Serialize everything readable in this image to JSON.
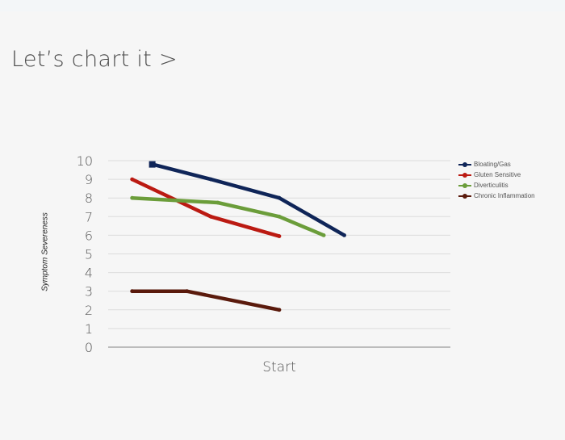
{
  "page": {
    "title": "Let’s chart it >"
  },
  "chart_data": {
    "type": "line",
    "ylabel": "Symptom Severeness",
    "ylim": [
      0,
      10
    ],
    "yticks": [
      "0",
      "1",
      "2",
      "3",
      "4",
      "5",
      "6",
      "7",
      "8",
      "9",
      "10"
    ],
    "xtick_label": "Start",
    "legend_position": "right",
    "grid": true,
    "series": [
      {
        "name": "Bloating/Gas",
        "color": "#0f2558",
        "points": [
          [
            0.13,
            9.8
          ],
          [
            0.3,
            9.0
          ],
          [
            0.5,
            8.0
          ],
          [
            0.69,
            6.0
          ]
        ]
      },
      {
        "name": "Gluten Sensitive",
        "color": "#bb1a12",
        "points": [
          [
            0.07,
            9.0
          ],
          [
            0.3,
            7.0
          ],
          [
            0.5,
            5.95
          ]
        ]
      },
      {
        "name": "Diverticulitis",
        "color": "#6b9d3a",
        "points": [
          [
            0.07,
            8.0
          ],
          [
            0.32,
            7.75
          ],
          [
            0.5,
            7.0
          ],
          [
            0.63,
            6.0
          ]
        ]
      },
      {
        "name": "Chronic Inflammation",
        "color": "#5a1a0c",
        "points": [
          [
            0.07,
            3.0
          ],
          [
            0.23,
            3.0
          ],
          [
            0.5,
            2.0
          ]
        ]
      }
    ]
  }
}
